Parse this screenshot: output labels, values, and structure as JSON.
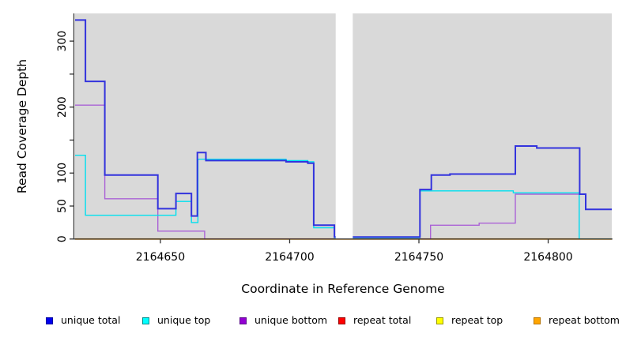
{
  "chart_data": {
    "type": "line",
    "title": "",
    "xlabel": "Coordinate in Reference Genome",
    "ylabel": "Read Coverage Depth",
    "xlim": [
      2164617,
      2164824.6
    ],
    "ylim": [
      0,
      342
    ],
    "panel_bg": "#d9d9d9",
    "axis_color": "#333333",
    "grid": "off",
    "gap_region": [
      2164717.8,
      2164724.4
    ],
    "x_ticks": [
      {
        "v": 2164650,
        "label": "2164650"
      },
      {
        "v": 2164700,
        "label": "2164700"
      },
      {
        "v": 2164750,
        "label": "2164750"
      },
      {
        "v": 2164800,
        "label": "2164800"
      }
    ],
    "y_ticks": [
      {
        "v": 0,
        "label": "0"
      },
      {
        "v": 50,
        "label": "50"
      },
      {
        "v": 100,
        "label": "100"
      },
      {
        "v": 150,
        "label": ""
      },
      {
        "v": 200,
        "label": "200"
      },
      {
        "v": 250,
        "label": ""
      },
      {
        "v": 300,
        "label": "300"
      }
    ],
    "series": [
      {
        "name": "repeat top",
        "color": "#ffee00",
        "width": 1.4,
        "points": [
          [
            2164617,
            0
          ],
          [
            2164824.6,
            0
          ]
        ]
      },
      {
        "name": "repeat bottom",
        "color": "#ff9d00",
        "width": 1.8,
        "points": [
          [
            2164617,
            0
          ],
          [
            2164824.6,
            0
          ]
        ]
      },
      {
        "name": "unique bottom",
        "color": "#ab63d6",
        "width": 1.4,
        "points": [
          [
            2164617,
            203
          ],
          [
            2164628.5,
            203
          ],
          [
            2164628.5,
            61
          ],
          [
            2164649,
            61
          ],
          [
            2164649,
            12
          ],
          [
            2164667.1,
            12
          ],
          [
            2164667.1,
            0
          ],
          [
            2164754.5,
            0
          ],
          [
            2164754.5,
            21
          ],
          [
            2164773.3,
            21
          ],
          [
            2164773.3,
            24
          ],
          [
            2164787.3,
            24
          ],
          [
            2164787.3,
            68
          ],
          [
            2164812,
            68
          ],
          [
            2164812,
            0
          ],
          [
            2164824.6,
            0
          ]
        ]
      },
      {
        "name": "repeat total",
        "color": "#e05560",
        "width": 1.4,
        "points": [
          [
            2164667.1,
            0
          ],
          [
            2164754.5,
            0
          ]
        ]
      },
      {
        "name": "unique top",
        "color": "#00e0ee",
        "width": 1.4,
        "points": [
          [
            2164617,
            127
          ],
          [
            2164621,
            127
          ],
          [
            2164621,
            36
          ],
          [
            2164656,
            36
          ],
          [
            2164656,
            57
          ],
          [
            2164662,
            57
          ],
          [
            2164662,
            25
          ],
          [
            2164664.5,
            25
          ],
          [
            2164664.5,
            121
          ],
          [
            2164698.6,
            121
          ],
          [
            2164698.6,
            119
          ],
          [
            2164707,
            119
          ],
          [
            2164707,
            117
          ],
          [
            2164709.3,
            117
          ],
          [
            2164709.3,
            17
          ],
          [
            2164717.3,
            17
          ],
          [
            2164717.3,
            2
          ],
          [
            2164750.4,
            2
          ],
          [
            2164750.4,
            73
          ],
          [
            2164786.5,
            73
          ],
          [
            2164786.5,
            70
          ],
          [
            2164812,
            70
          ],
          [
            2164812,
            0
          ],
          [
            2164824.6,
            0
          ]
        ]
      },
      {
        "name": "unique total",
        "color": "#3333dd",
        "width": 2,
        "points": [
          [
            2164617,
            332
          ],
          [
            2164621,
            332
          ],
          [
            2164621,
            239
          ],
          [
            2164628.5,
            239
          ],
          [
            2164628.5,
            97
          ],
          [
            2164649,
            97
          ],
          [
            2164649,
            46
          ],
          [
            2164656,
            46
          ],
          [
            2164656,
            69
          ],
          [
            2164662,
            69
          ],
          [
            2164662,
            35
          ],
          [
            2164664.3,
            35
          ],
          [
            2164664.3,
            131
          ],
          [
            2164667.6,
            131
          ],
          [
            2164667.6,
            119
          ],
          [
            2164698.6,
            119
          ],
          [
            2164698.6,
            117
          ],
          [
            2164707,
            117
          ],
          [
            2164707,
            115
          ],
          [
            2164709.3,
            115
          ],
          [
            2164709.3,
            21
          ],
          [
            2164717.3,
            21
          ],
          [
            2164717.3,
            3
          ],
          [
            2164750.4,
            3
          ],
          [
            2164750.4,
            75
          ],
          [
            2164754.8,
            75
          ],
          [
            2164754.8,
            97
          ],
          [
            2164762,
            97
          ],
          [
            2164762,
            98.5
          ],
          [
            2164787.3,
            98.5
          ],
          [
            2164787.3,
            141
          ],
          [
            2164795.6,
            141
          ],
          [
            2164795.6,
            138
          ],
          [
            2164812.2,
            138
          ],
          [
            2164812.2,
            68
          ],
          [
            2164814.5,
            68
          ],
          [
            2164814.5,
            45
          ],
          [
            2164824.6,
            45
          ]
        ]
      }
    ],
    "legend": {
      "items": [
        {
          "label": "unique total",
          "color": "#0000ee",
          "border": "#0000a0"
        },
        {
          "label": "unique top",
          "color": "#00ffff",
          "border": "#008b8b"
        },
        {
          "label": "unique bottom",
          "color": "#9400d3",
          "border": "#5c0a8c"
        },
        {
          "label": "repeat total",
          "color": "#ff0000",
          "border": "#990000"
        },
        {
          "label": "repeat top",
          "color": "#ffff00",
          "border": "#999900"
        },
        {
          "label": "repeat bottom",
          "color": "#ffa500",
          "border": "#b87400"
        }
      ]
    }
  }
}
